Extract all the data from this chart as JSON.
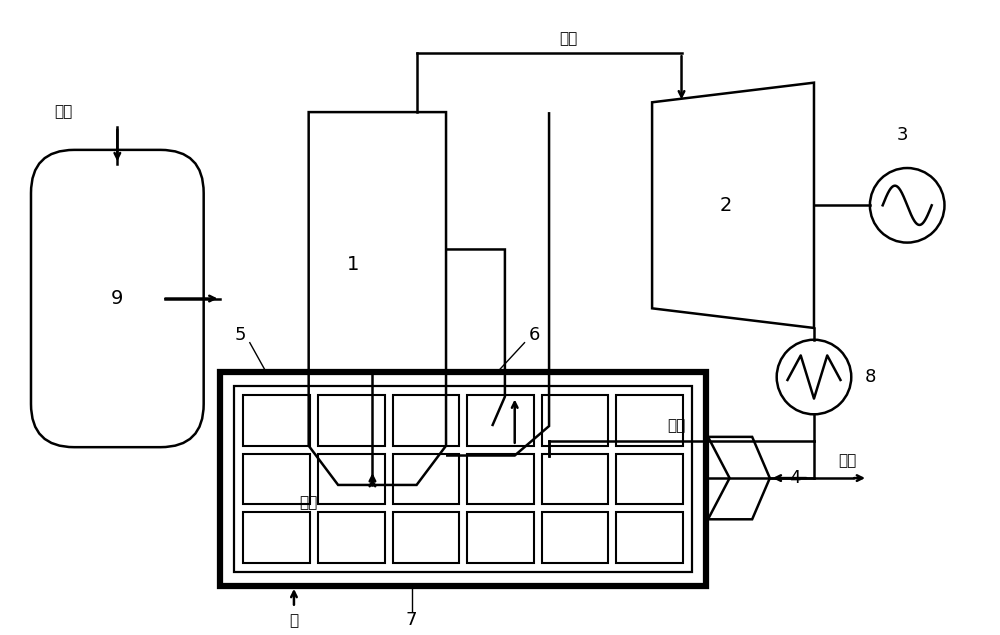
{
  "bg_color": "#ffffff",
  "line_color": "#000000",
  "label_1": "1",
  "label_2": "2",
  "label_3": "3",
  "label_4": "4",
  "label_5": "5",
  "label_6": "6",
  "label_7": "7",
  "label_8": "8",
  "label_9": "9",
  "text_ammonia_top": "氨气",
  "text_ammonia_bottom": "氨气",
  "text_feedwater": "给水",
  "text_hotwater": "热水",
  "text_elec": "电",
  "text_steam": "蔓汽"
}
